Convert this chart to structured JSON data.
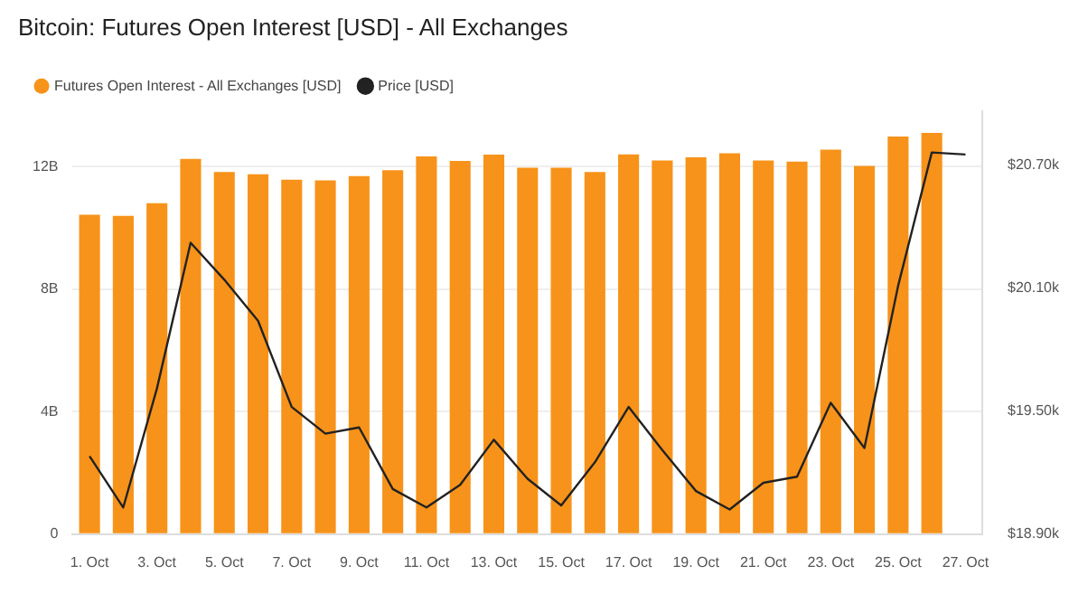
{
  "chart_data": {
    "type": "bar",
    "title": "Bitcoin: Futures Open Interest [USD] - All Exchanges",
    "categories": [
      "1. Oct",
      null,
      "3. Oct",
      null,
      "5. Oct",
      null,
      "7. Oct",
      null,
      "9. Oct",
      null,
      "11. Oct",
      null,
      "13. Oct",
      null,
      "15. Oct",
      null,
      "17. Oct",
      null,
      "19. Oct",
      null,
      "21. Oct",
      null,
      "23. Oct",
      null,
      "25. Oct",
      null,
      "27. Oct"
    ],
    "series": [
      {
        "name": "Futures Open Interest - All Exchanges [USD]",
        "color": "#f7931a",
        "values": [
          10.43,
          10.39,
          10.8,
          12.25,
          11.82,
          11.75,
          11.57,
          11.55,
          11.69,
          11.88,
          12.33,
          12.18,
          12.39,
          11.96,
          11.96,
          11.82,
          12.4,
          12.2,
          12.3,
          12.43,
          12.2,
          12.16,
          12.55,
          12.02,
          12.98,
          13.1,
          null
        ]
      },
      {
        "name": "Price [USD]",
        "type": "line",
        "axis": "y2",
        "color": "#222222",
        "values": [
          19280,
          19030,
          19610,
          20320,
          20140,
          19940,
          19520,
          19390,
          19420,
          19120,
          19030,
          19140,
          19360,
          19170,
          19040,
          19250,
          19520,
          19310,
          19110,
          19020,
          19150,
          19180,
          19540,
          19320,
          20110,
          20760,
          20750
        ]
      }
    ],
    "ylim": [
      0,
      13.8
    ],
    "yticks": [
      0,
      {
        "value": 4,
        "label": "4B"
      },
      {
        "value": 8,
        "label": "8B"
      },
      {
        "value": 12,
        "label": "12B"
      }
    ],
    "y2lim": [
      18900,
      20960
    ],
    "y2ticks": [
      {
        "value": 18900,
        "label": "$18.90k"
      },
      {
        "value": 19500,
        "label": "$19.50k"
      },
      {
        "value": 20100,
        "label": "$20.10k"
      },
      {
        "value": 20700,
        "label": "$20.70k"
      }
    ],
    "grid": "y",
    "legend": "top left",
    "marker": "none",
    "line_style": "solid"
  }
}
